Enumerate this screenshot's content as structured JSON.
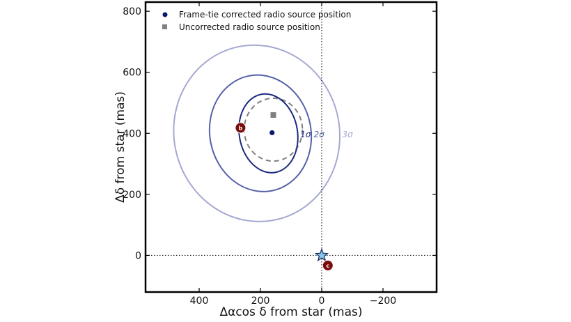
{
  "chart_data": {
    "type": "scatter",
    "xlabel": "Δαcos δ from star (mas)",
    "ylabel": "Δδ from star (mas)",
    "xlim": [
      575,
      -375
    ],
    "ylim": [
      -120,
      830
    ],
    "x_inverted": true,
    "xticks": [
      400,
      200,
      0,
      -200
    ],
    "xtick_labels": [
      "400",
      "200",
      "0",
      "−200"
    ],
    "yticks": [
      0,
      200,
      400,
      600,
      800
    ],
    "ytick_labels": [
      "0",
      "200",
      "400",
      "600",
      "800"
    ],
    "grid": false,
    "legend_placement": "top-left",
    "legend": [
      {
        "label": "Frame-tie corrected radio source position",
        "marker": "circle",
        "color": "#0a1a6e"
      },
      {
        "label": "Uncorrected radio source position",
        "marker": "square",
        "color": "#808080"
      }
    ],
    "series": [
      {
        "name": "Frame-tie corrected radio source position",
        "points": [
          {
            "x": 162,
            "y": 402
          }
        ]
      },
      {
        "name": "Uncorrected radio source position",
        "points": [
          {
            "x": 158,
            "y": 460
          }
        ]
      }
    ],
    "reference_lines": [
      {
        "orientation": "vertical",
        "value": 0,
        "style": "dotted"
      },
      {
        "orientation": "horizontal",
        "value": 0,
        "style": "dotted"
      }
    ],
    "ellipses": [
      {
        "label": "1σ",
        "center": [
          174,
          400
        ],
        "semi_axes": [
          95,
          130
        ],
        "rotation_deg": -10,
        "color": "#1a2a80",
        "style": "solid"
      },
      {
        "label": "2σ",
        "center": [
          200,
          400
        ],
        "semi_axes": [
          165,
          192
        ],
        "rotation_deg": -12,
        "color": "#5561a8",
        "style": "solid"
      },
      {
        "label": "3σ",
        "center": [
          212,
          400
        ],
        "semi_axes": [
          270,
          290
        ],
        "rotation_deg": -14,
        "color": "#a5a9d2",
        "style": "solid"
      },
      {
        "label": "",
        "center": [
          158,
          412
        ],
        "semi_axes": [
          95,
          103
        ],
        "rotation_deg": 0,
        "color": "#808080",
        "style": "dashed"
      }
    ],
    "markers": [
      {
        "label": "b",
        "x": 265,
        "y": 418,
        "color": "#7a0c0c"
      },
      {
        "label": "c",
        "x": -20,
        "y": -33,
        "color": "#7a0c0c"
      }
    ],
    "star": {
      "x": 0,
      "y": 0,
      "color": "#87c4ea"
    }
  }
}
